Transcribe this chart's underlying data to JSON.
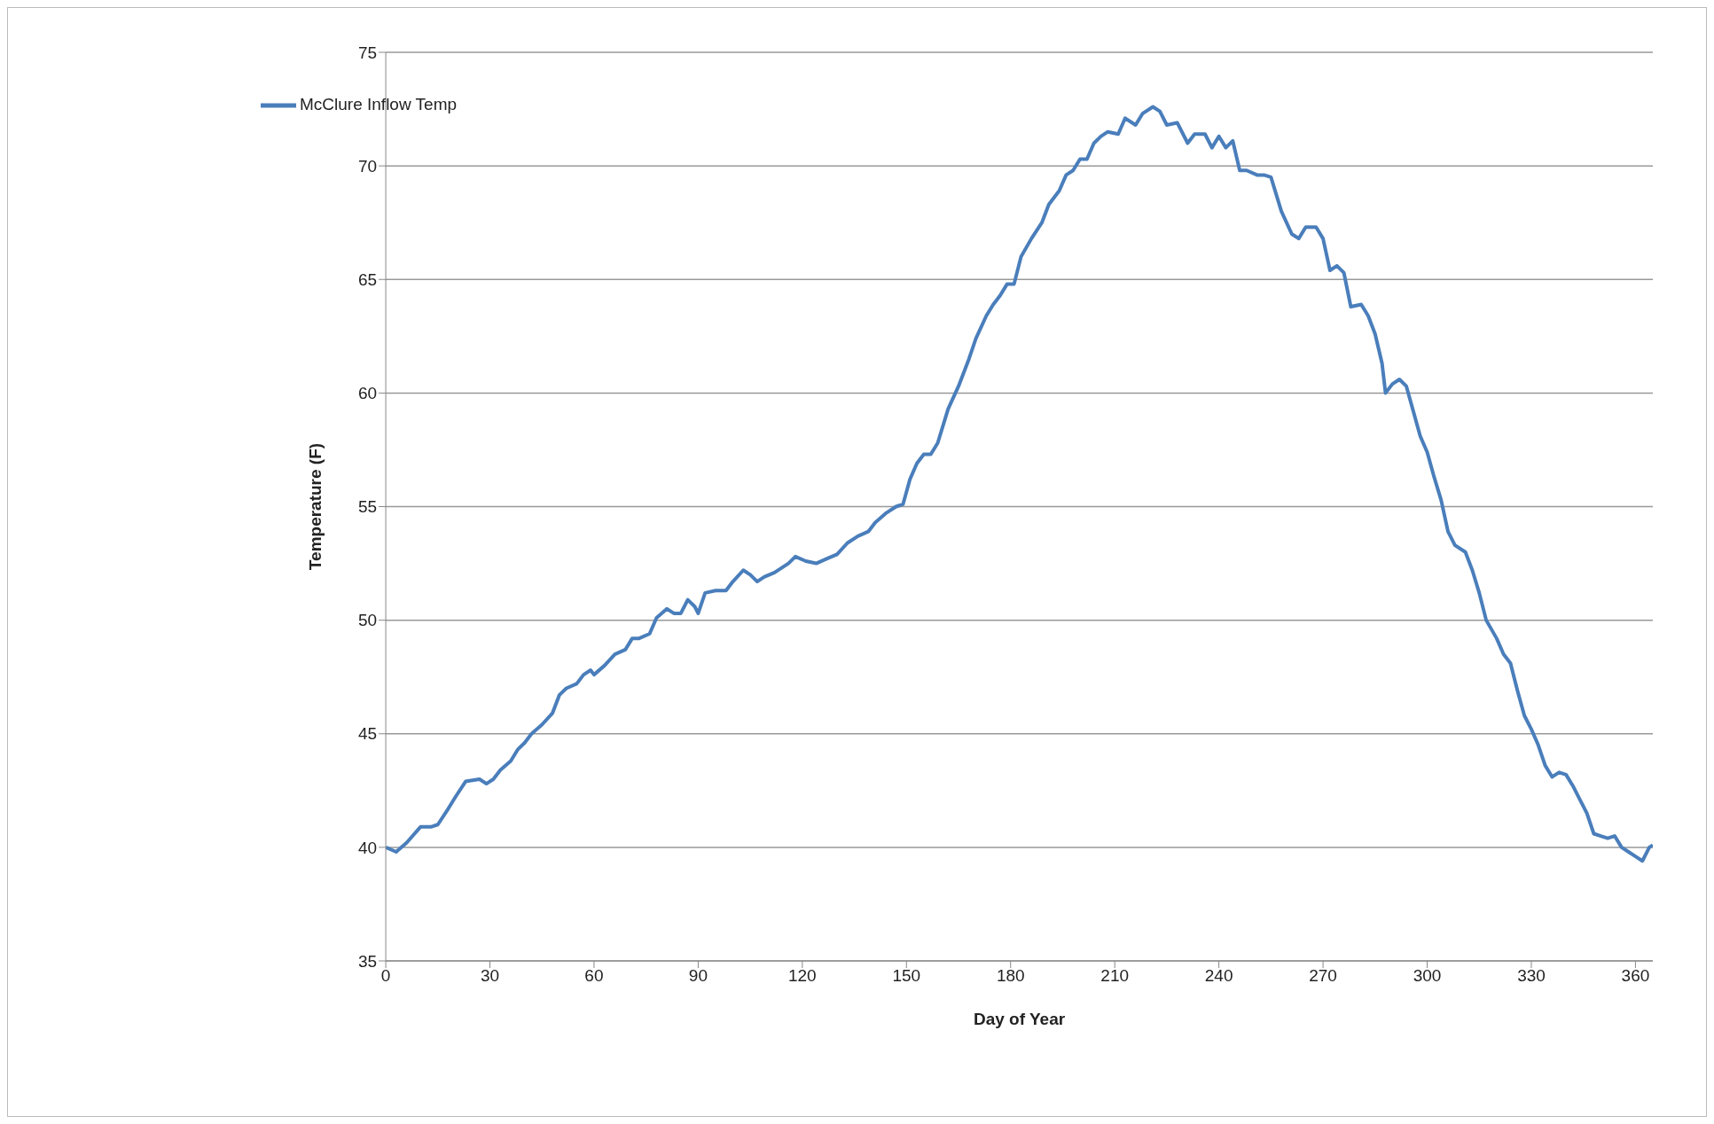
{
  "chart_data": {
    "type": "line",
    "xlabel": "Day of Year",
    "ylabel": "Temperature (F)",
    "xlim": [
      0,
      365
    ],
    "xticks": [
      0,
      30,
      60,
      90,
      120,
      150,
      180,
      210,
      240,
      270,
      300,
      330,
      360
    ],
    "ylim": [
      35,
      75
    ],
    "yticks": [
      35,
      40,
      45,
      50,
      55,
      60,
      65,
      70,
      75
    ],
    "grid": "y",
    "legend": "top left",
    "marker": "none",
    "line_style": "solid",
    "series": [
      {
        "name": "McClure Inflow Temp",
        "color": "#4a7ebb",
        "x": [
          0,
          3,
          6,
          10,
          13,
          15,
          18,
          20,
          23,
          27,
          29,
          31,
          33,
          36,
          38,
          40,
          42,
          45,
          48,
          50,
          52,
          55,
          57,
          59,
          60,
          63,
          66,
          69,
          71,
          73,
          76,
          78,
          81,
          83,
          85,
          87,
          89,
          90,
          92,
          95,
          98,
          100,
          103,
          105,
          107,
          109,
          112,
          116,
          118,
          121,
          124,
          127,
          130,
          133,
          136,
          139,
          141,
          144,
          147,
          149,
          151,
          153,
          155,
          157,
          159,
          162,
          165,
          168,
          170,
          173,
          175,
          177,
          179,
          181,
          183,
          186,
          189,
          191,
          194,
          196,
          198,
          200,
          202,
          204,
          206,
          208,
          211,
          213,
          216,
          218,
          221,
          223,
          225,
          228,
          231,
          233,
          236,
          238,
          240,
          242,
          244,
          246,
          248,
          251,
          253,
          255,
          258,
          261,
          263,
          265,
          268,
          270,
          272,
          274,
          276,
          278,
          281,
          283,
          285,
          287,
          288,
          290,
          292,
          294,
          296,
          298,
          300,
          302,
          304,
          306,
          308,
          311,
          313,
          315,
          317,
          320,
          322,
          324,
          326,
          328,
          330,
          332,
          334,
          336,
          338,
          340,
          342,
          344,
          346,
          348,
          350,
          352,
          354,
          356,
          358,
          360,
          362,
          364,
          365
        ],
        "values": [
          40.0,
          39.8,
          40.2,
          40.9,
          40.9,
          41.0,
          41.7,
          42.2,
          42.9,
          43.0,
          42.8,
          43.0,
          43.4,
          43.8,
          44.3,
          44.6,
          45.0,
          45.4,
          45.9,
          46.7,
          47.0,
          47.2,
          47.6,
          47.8,
          47.6,
          48.0,
          48.5,
          48.7,
          49.2,
          49.2,
          49.4,
          50.1,
          50.5,
          50.3,
          50.3,
          50.9,
          50.6,
          50.3,
          51.2,
          51.3,
          51.3,
          51.7,
          52.2,
          52.0,
          51.7,
          51.9,
          52.1,
          52.5,
          52.8,
          52.6,
          52.5,
          52.7,
          52.9,
          53.4,
          53.7,
          53.9,
          54.3,
          54.7,
          55.0,
          55.1,
          56.2,
          56.9,
          57.3,
          57.3,
          57.8,
          59.3,
          60.3,
          61.5,
          62.4,
          63.4,
          63.9,
          64.3,
          64.8,
          64.8,
          66.0,
          66.8,
          67.5,
          68.3,
          68.9,
          69.6,
          69.8,
          70.3,
          70.3,
          71.0,
          71.3,
          71.5,
          71.4,
          72.1,
          71.8,
          72.3,
          72.6,
          72.4,
          71.8,
          71.9,
          71.0,
          71.4,
          71.4,
          70.8,
          71.3,
          70.8,
          71.1,
          69.8,
          69.8,
          69.6,
          69.6,
          69.5,
          68.0,
          67.0,
          66.8,
          67.3,
          67.3,
          66.8,
          65.4,
          65.6,
          65.3,
          63.8,
          63.9,
          63.4,
          62.6,
          61.3,
          60.0,
          60.4,
          60.6,
          60.3,
          59.2,
          58.1,
          57.4,
          56.3,
          55.3,
          53.9,
          53.3,
          53.0,
          52.2,
          51.2,
          50.0,
          49.2,
          48.5,
          48.1,
          46.9,
          45.8,
          45.2,
          44.5,
          43.6,
          43.1,
          43.3,
          43.2,
          42.7,
          42.1,
          41.5,
          40.6,
          40.5,
          40.4,
          40.5,
          40.0,
          39.8,
          39.6,
          39.4,
          40.0,
          40.1
        ]
      }
    ]
  }
}
